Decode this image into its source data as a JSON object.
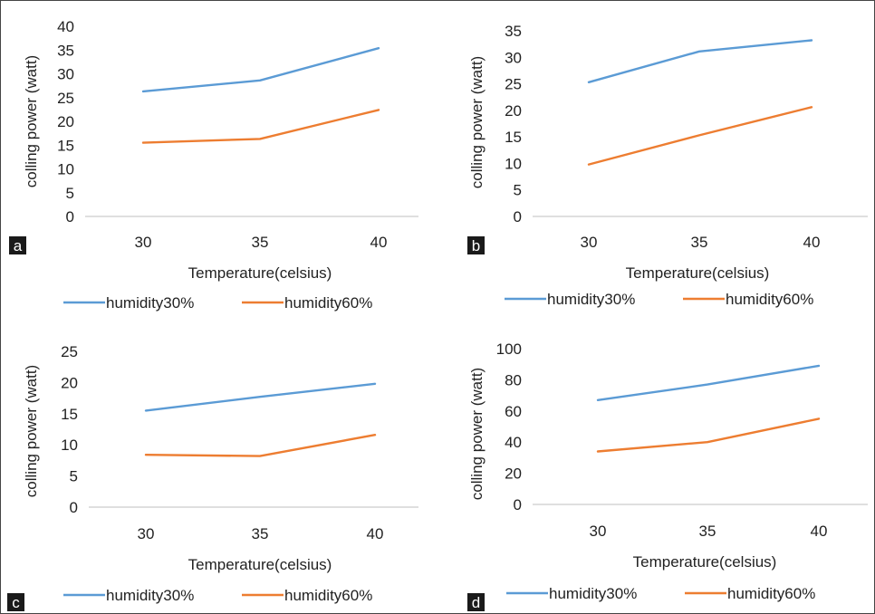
{
  "chart_data": [
    {
      "panel_label": "a",
      "type": "line",
      "categories": [
        "30",
        "35",
        "40"
      ],
      "xlabel": "Temperature(celsius)",
      "ylabel": "colling power (watt)",
      "ylim": [
        0,
        40
      ],
      "yticks": [
        "0",
        "5",
        "10",
        "15",
        "20",
        "25",
        "30",
        "35",
        "40"
      ],
      "legend_position": "bottom",
      "series": [
        {
          "name": "humidity30%",
          "color": "#5b9bd5",
          "values": [
            26.3,
            28.6,
            35.4
          ]
        },
        {
          "name": "humidity60%",
          "color": "#ed7d31",
          "values": [
            15.5,
            16.3,
            22.4
          ]
        }
      ]
    },
    {
      "panel_label": "b",
      "type": "line",
      "categories": [
        "30",
        "35",
        "40"
      ],
      "xlabel": "Temperature(celsius)",
      "ylabel": "colling power (watt)",
      "ylim": [
        0,
        35
      ],
      "yticks": [
        "0",
        "5",
        "10",
        "15",
        "20",
        "25",
        "30",
        "35"
      ],
      "legend_position": "bottom",
      "series": [
        {
          "name": "humidity30%",
          "color": "#5b9bd5",
          "values": [
            25.3,
            31.1,
            33.2
          ]
        },
        {
          "name": "humidity60%",
          "color": "#ed7d31",
          "values": [
            9.8,
            15.3,
            20.6
          ]
        }
      ]
    },
    {
      "panel_label": "c",
      "type": "line",
      "categories": [
        "30",
        "35",
        "40"
      ],
      "xlabel": "Temperature(celsius)",
      "ylabel": "colling power (watt)",
      "ylim": [
        0,
        25
      ],
      "yticks": [
        "0",
        "5",
        "10",
        "15",
        "20",
        "25"
      ],
      "legend_position": "bottom",
      "series": [
        {
          "name": "humidity30%",
          "color": "#5b9bd5",
          "values": [
            15.5,
            17.7,
            19.8
          ]
        },
        {
          "name": "humidity60%",
          "color": "#ed7d31",
          "values": [
            8.4,
            8.2,
            11.6
          ]
        }
      ]
    },
    {
      "panel_label": "d",
      "type": "line",
      "categories": [
        "30",
        "35",
        "40"
      ],
      "xlabel": "Temperature(celsius)",
      "ylabel": "colling power (watt)",
      "ylim": [
        0,
        100
      ],
      "yticks": [
        "0",
        "20",
        "40",
        "60",
        "80",
        "100"
      ],
      "legend_position": "bottom",
      "series": [
        {
          "name": "humidity30%",
          "color": "#5b9bd5",
          "values": [
            67,
            77,
            89
          ]
        },
        {
          "name": "humidity60%",
          "color": "#ed7d31",
          "values": [
            34,
            40,
            55
          ]
        }
      ]
    }
  ]
}
